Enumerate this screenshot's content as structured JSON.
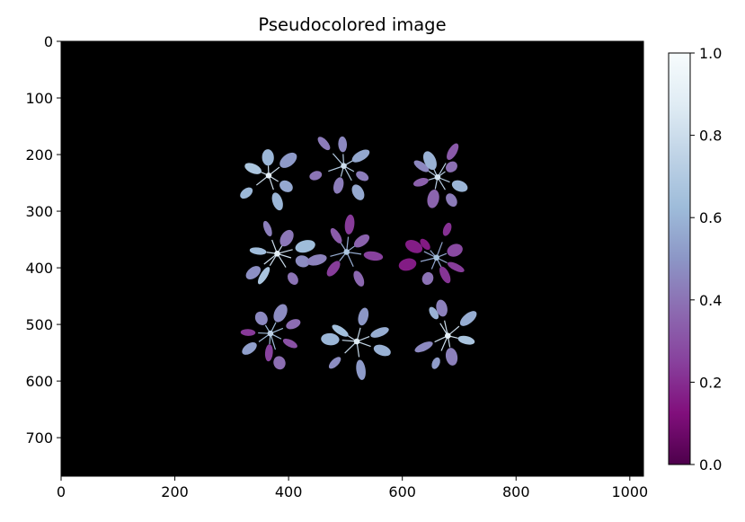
{
  "chart_data": {
    "type": "heatmap",
    "title": "Pseudocolored image",
    "xlabel": "",
    "ylabel": "",
    "xlim": [
      0,
      1024
    ],
    "ylim": [
      768,
      0
    ],
    "x_ticks": [
      0,
      200,
      400,
      600,
      800,
      1000
    ],
    "y_ticks": [
      0,
      100,
      200,
      300,
      400,
      500,
      600,
      700
    ],
    "background": "#000000",
    "grid": false,
    "colormap": "BuPu_r",
    "colorbar": {
      "range": [
        0.0,
        1.0
      ],
      "ticks": [
        "0.0",
        "0.2",
        "0.4",
        "0.6",
        "0.8",
        "1.0"
      ],
      "colors": [
        "#4d004b",
        "#810f7c",
        "#88419d",
        "#8c6bb1",
        "#8c96c6",
        "#9ebcda",
        "#bfd3e6",
        "#e0ecf4",
        "#f7fcfd"
      ]
    },
    "plants": [
      {
        "x": 365,
        "y": 237,
        "value": 0.55
      },
      {
        "x": 497,
        "y": 220,
        "value": 0.45
      },
      {
        "x": 662,
        "y": 240,
        "value": 0.47
      },
      {
        "x": 380,
        "y": 375,
        "value": 0.55
      },
      {
        "x": 502,
        "y": 372,
        "value": 0.33
      },
      {
        "x": 660,
        "y": 382,
        "value": 0.3
      },
      {
        "x": 368,
        "y": 516,
        "value": 0.38
      },
      {
        "x": 520,
        "y": 530,
        "value": 0.52
      },
      {
        "x": 680,
        "y": 520,
        "value": 0.55
      }
    ]
  }
}
